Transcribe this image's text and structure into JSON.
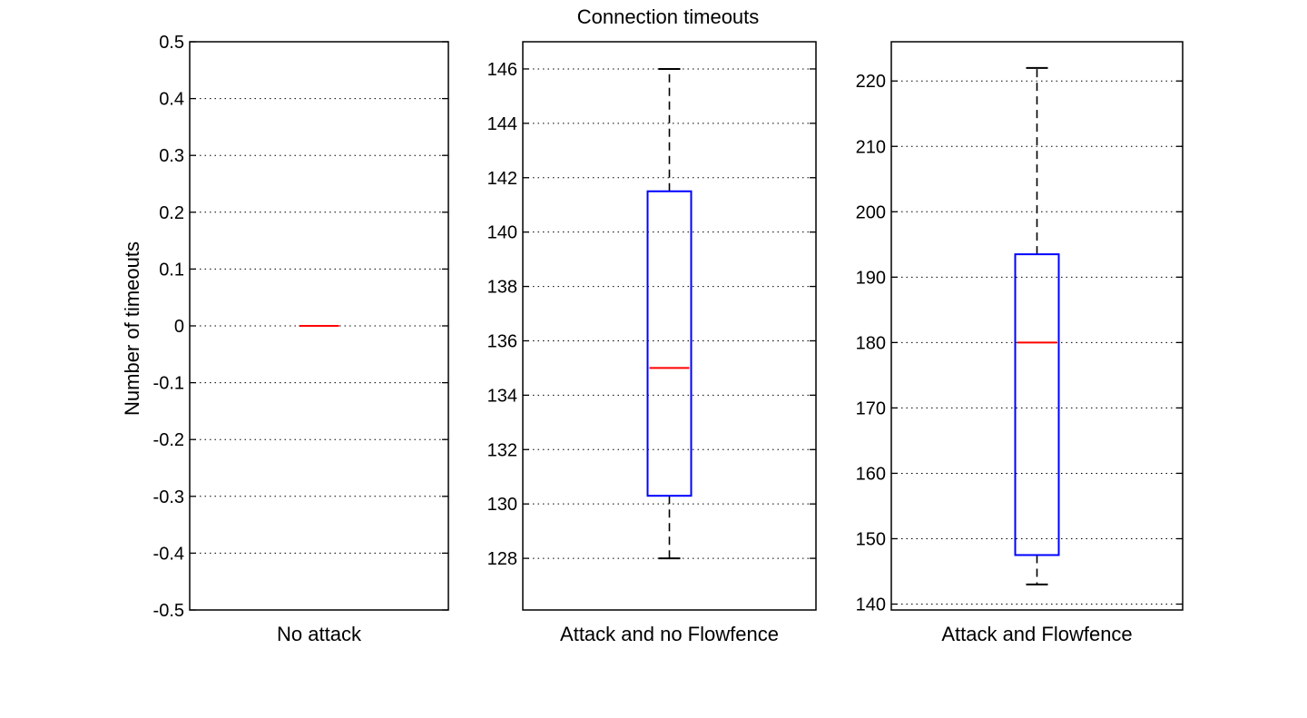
{
  "chart_data": {
    "type": "box",
    "title": "Connection timeouts",
    "ylabel": "Number of timeouts",
    "grid": true,
    "colors": {
      "box": "#0000ff",
      "median": "#ff0000",
      "whisker": "#000000",
      "grid": "#000000",
      "axes": "#000000"
    },
    "panels": [
      {
        "category": "No attack",
        "ylim": [
          -0.5,
          0.5
        ],
        "yticks": [
          -0.5,
          -0.4,
          -0.3,
          -0.2,
          -0.1,
          0,
          0.1,
          0.2,
          0.3,
          0.4,
          0.5
        ],
        "ytick_labels": [
          "-0.5",
          "-0.4",
          "-0.3",
          "-0.2",
          "-0.1",
          "0",
          "0.1",
          "0.2",
          "0.3",
          "0.4",
          "0.5"
        ],
        "box": {
          "whisker_low": 0,
          "q1": 0,
          "median": 0,
          "q3": 0,
          "whisker_high": 0
        }
      },
      {
        "category": "Attack and no Flowfence",
        "ylim": [
          126.1,
          147.0
        ],
        "yticks": [
          128,
          130,
          132,
          134,
          136,
          138,
          140,
          142,
          144,
          146
        ],
        "ytick_labels": [
          "128",
          "130",
          "132",
          "134",
          "136",
          "138",
          "140",
          "142",
          "144",
          "146"
        ],
        "box": {
          "whisker_low": 128,
          "q1": 130.3,
          "median": 135,
          "q3": 141.5,
          "whisker_high": 146
        }
      },
      {
        "category": "Attack and Flowfence",
        "ylim": [
          139.1,
          226.0
        ],
        "yticks": [
          140,
          150,
          160,
          170,
          180,
          190,
          200,
          210,
          220
        ],
        "ytick_labels": [
          "140",
          "150",
          "160",
          "170",
          "180",
          "190",
          "200",
          "210",
          "220"
        ],
        "box": {
          "whisker_low": 143,
          "q1": 147.5,
          "median": 180,
          "q3": 193.5,
          "whisker_high": 222
        }
      }
    ]
  }
}
